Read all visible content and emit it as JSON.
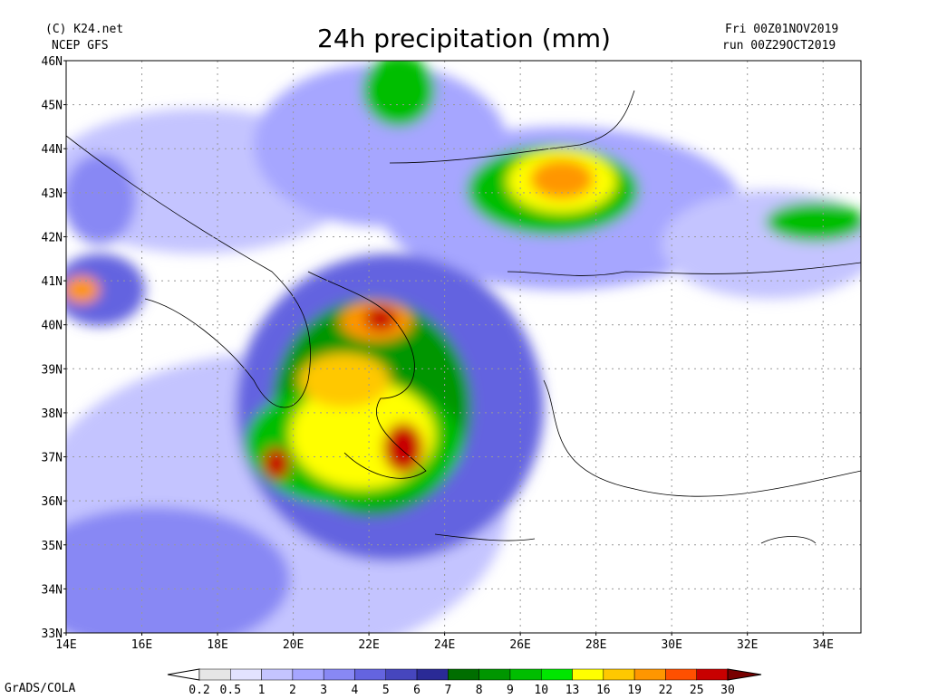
{
  "header": {
    "credit": "(C) K24.net",
    "model": "NCEP GFS",
    "title": "24h precipitation (mm)",
    "valid": "Fri 00Z01NOV2019",
    "run": "run 00Z29OCT2019"
  },
  "map": {
    "lat_labels": [
      "46N",
      "45N",
      "44N",
      "43N",
      "42N",
      "41N",
      "40N",
      "39N",
      "38N",
      "37N",
      "36N",
      "35N",
      "34N",
      "33N"
    ],
    "lon_labels": [
      "14E",
      "16E",
      "18E",
      "20E",
      "22E",
      "24E",
      "26E",
      "28E",
      "30E",
      "32E",
      "34E"
    ]
  },
  "colorbar": {
    "labels": [
      "0.2",
      "0.5",
      "1",
      "2",
      "3",
      "4",
      "5",
      "6",
      "7",
      "8",
      "9",
      "10",
      "13",
      "16",
      "19",
      "22",
      "25",
      "30"
    ],
    "colors": [
      "#ffffff",
      "#e6e6e6",
      "#e2e2ff",
      "#c4c4ff",
      "#a6a6ff",
      "#8888f4",
      "#6464e0",
      "#4646be",
      "#2a2a96",
      "#006e00",
      "#009600",
      "#00be00",
      "#00e600",
      "#ffff00",
      "#ffc800",
      "#ff9600",
      "#ff5000",
      "#c80000",
      "#780000"
    ]
  },
  "footer": "GrADS/COLA"
}
